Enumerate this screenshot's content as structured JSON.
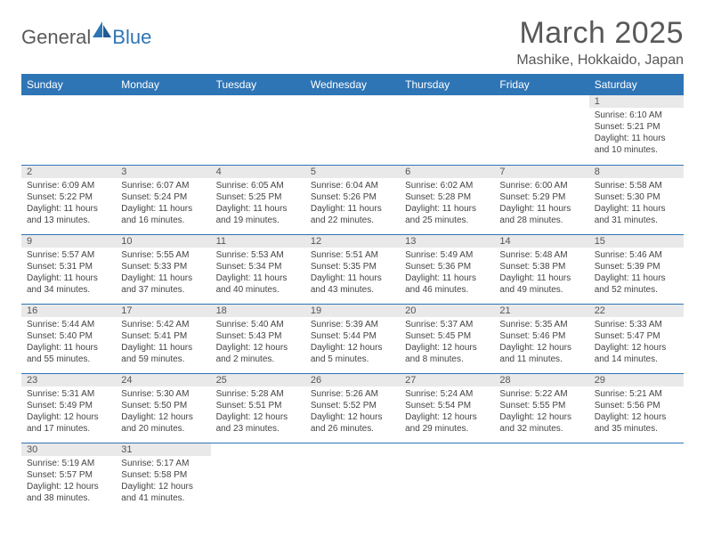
{
  "brand": {
    "part1": "General",
    "part2": "Blue"
  },
  "title": "March 2025",
  "location": "Mashike, Hokkaido, Japan",
  "colors": {
    "header_bg": "#2e75b6",
    "header_text": "#ffffff",
    "border": "#2e75b6",
    "daybar_bg": "#e9e9e9",
    "body_text": "#444444",
    "title_text": "#585858"
  },
  "weekdays": [
    "Sunday",
    "Monday",
    "Tuesday",
    "Wednesday",
    "Thursday",
    "Friday",
    "Saturday"
  ],
  "weeks": [
    [
      null,
      null,
      null,
      null,
      null,
      null,
      {
        "d": "1",
        "sr": "Sunrise: 6:10 AM",
        "ss": "Sunset: 5:21 PM",
        "dl1": "Daylight: 11 hours",
        "dl2": "and 10 minutes."
      }
    ],
    [
      {
        "d": "2",
        "sr": "Sunrise: 6:09 AM",
        "ss": "Sunset: 5:22 PM",
        "dl1": "Daylight: 11 hours",
        "dl2": "and 13 minutes."
      },
      {
        "d": "3",
        "sr": "Sunrise: 6:07 AM",
        "ss": "Sunset: 5:24 PM",
        "dl1": "Daylight: 11 hours",
        "dl2": "and 16 minutes."
      },
      {
        "d": "4",
        "sr": "Sunrise: 6:05 AM",
        "ss": "Sunset: 5:25 PM",
        "dl1": "Daylight: 11 hours",
        "dl2": "and 19 minutes."
      },
      {
        "d": "5",
        "sr": "Sunrise: 6:04 AM",
        "ss": "Sunset: 5:26 PM",
        "dl1": "Daylight: 11 hours",
        "dl2": "and 22 minutes."
      },
      {
        "d": "6",
        "sr": "Sunrise: 6:02 AM",
        "ss": "Sunset: 5:28 PM",
        "dl1": "Daylight: 11 hours",
        "dl2": "and 25 minutes."
      },
      {
        "d": "7",
        "sr": "Sunrise: 6:00 AM",
        "ss": "Sunset: 5:29 PM",
        "dl1": "Daylight: 11 hours",
        "dl2": "and 28 minutes."
      },
      {
        "d": "8",
        "sr": "Sunrise: 5:58 AM",
        "ss": "Sunset: 5:30 PM",
        "dl1": "Daylight: 11 hours",
        "dl2": "and 31 minutes."
      }
    ],
    [
      {
        "d": "9",
        "sr": "Sunrise: 5:57 AM",
        "ss": "Sunset: 5:31 PM",
        "dl1": "Daylight: 11 hours",
        "dl2": "and 34 minutes."
      },
      {
        "d": "10",
        "sr": "Sunrise: 5:55 AM",
        "ss": "Sunset: 5:33 PM",
        "dl1": "Daylight: 11 hours",
        "dl2": "and 37 minutes."
      },
      {
        "d": "11",
        "sr": "Sunrise: 5:53 AM",
        "ss": "Sunset: 5:34 PM",
        "dl1": "Daylight: 11 hours",
        "dl2": "and 40 minutes."
      },
      {
        "d": "12",
        "sr": "Sunrise: 5:51 AM",
        "ss": "Sunset: 5:35 PM",
        "dl1": "Daylight: 11 hours",
        "dl2": "and 43 minutes."
      },
      {
        "d": "13",
        "sr": "Sunrise: 5:49 AM",
        "ss": "Sunset: 5:36 PM",
        "dl1": "Daylight: 11 hours",
        "dl2": "and 46 minutes."
      },
      {
        "d": "14",
        "sr": "Sunrise: 5:48 AM",
        "ss": "Sunset: 5:38 PM",
        "dl1": "Daylight: 11 hours",
        "dl2": "and 49 minutes."
      },
      {
        "d": "15",
        "sr": "Sunrise: 5:46 AM",
        "ss": "Sunset: 5:39 PM",
        "dl1": "Daylight: 11 hours",
        "dl2": "and 52 minutes."
      }
    ],
    [
      {
        "d": "16",
        "sr": "Sunrise: 5:44 AM",
        "ss": "Sunset: 5:40 PM",
        "dl1": "Daylight: 11 hours",
        "dl2": "and 55 minutes."
      },
      {
        "d": "17",
        "sr": "Sunrise: 5:42 AM",
        "ss": "Sunset: 5:41 PM",
        "dl1": "Daylight: 11 hours",
        "dl2": "and 59 minutes."
      },
      {
        "d": "18",
        "sr": "Sunrise: 5:40 AM",
        "ss": "Sunset: 5:43 PM",
        "dl1": "Daylight: 12 hours",
        "dl2": "and 2 minutes."
      },
      {
        "d": "19",
        "sr": "Sunrise: 5:39 AM",
        "ss": "Sunset: 5:44 PM",
        "dl1": "Daylight: 12 hours",
        "dl2": "and 5 minutes."
      },
      {
        "d": "20",
        "sr": "Sunrise: 5:37 AM",
        "ss": "Sunset: 5:45 PM",
        "dl1": "Daylight: 12 hours",
        "dl2": "and 8 minutes."
      },
      {
        "d": "21",
        "sr": "Sunrise: 5:35 AM",
        "ss": "Sunset: 5:46 PM",
        "dl1": "Daylight: 12 hours",
        "dl2": "and 11 minutes."
      },
      {
        "d": "22",
        "sr": "Sunrise: 5:33 AM",
        "ss": "Sunset: 5:47 PM",
        "dl1": "Daylight: 12 hours",
        "dl2": "and 14 minutes."
      }
    ],
    [
      {
        "d": "23",
        "sr": "Sunrise: 5:31 AM",
        "ss": "Sunset: 5:49 PM",
        "dl1": "Daylight: 12 hours",
        "dl2": "and 17 minutes."
      },
      {
        "d": "24",
        "sr": "Sunrise: 5:30 AM",
        "ss": "Sunset: 5:50 PM",
        "dl1": "Daylight: 12 hours",
        "dl2": "and 20 minutes."
      },
      {
        "d": "25",
        "sr": "Sunrise: 5:28 AM",
        "ss": "Sunset: 5:51 PM",
        "dl1": "Daylight: 12 hours",
        "dl2": "and 23 minutes."
      },
      {
        "d": "26",
        "sr": "Sunrise: 5:26 AM",
        "ss": "Sunset: 5:52 PM",
        "dl1": "Daylight: 12 hours",
        "dl2": "and 26 minutes."
      },
      {
        "d": "27",
        "sr": "Sunrise: 5:24 AM",
        "ss": "Sunset: 5:54 PM",
        "dl1": "Daylight: 12 hours",
        "dl2": "and 29 minutes."
      },
      {
        "d": "28",
        "sr": "Sunrise: 5:22 AM",
        "ss": "Sunset: 5:55 PM",
        "dl1": "Daylight: 12 hours",
        "dl2": "and 32 minutes."
      },
      {
        "d": "29",
        "sr": "Sunrise: 5:21 AM",
        "ss": "Sunset: 5:56 PM",
        "dl1": "Daylight: 12 hours",
        "dl2": "and 35 minutes."
      }
    ],
    [
      {
        "d": "30",
        "sr": "Sunrise: 5:19 AM",
        "ss": "Sunset: 5:57 PM",
        "dl1": "Daylight: 12 hours",
        "dl2": "and 38 minutes."
      },
      {
        "d": "31",
        "sr": "Sunrise: 5:17 AM",
        "ss": "Sunset: 5:58 PM",
        "dl1": "Daylight: 12 hours",
        "dl2": "and 41 minutes."
      },
      null,
      null,
      null,
      null,
      null
    ]
  ]
}
